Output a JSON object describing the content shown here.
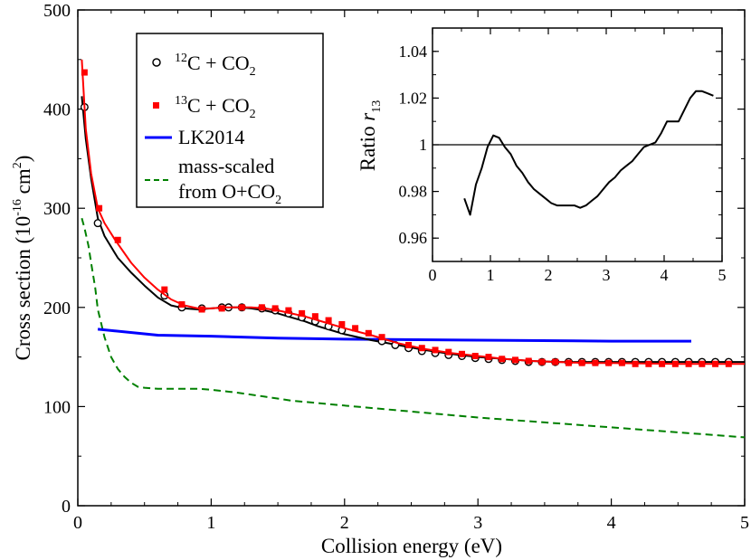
{
  "chart_data": [
    {
      "type": "line",
      "xlabel": "Collision energy (eV)",
      "ylabel": {
        "base": "Cross section (10",
        "exp": "-16",
        "unit": " cm",
        "unit_exp": "2",
        "close": ")"
      },
      "xlim": [
        0,
        5
      ],
      "ylim": [
        0,
        500
      ],
      "x_ticks": [
        0,
        1,
        2,
        3,
        4,
        5
      ],
      "y_ticks": [
        0,
        100,
        200,
        300,
        400,
        500
      ],
      "series": [
        {
          "name": "12C + CO2",
          "legend": {
            "sup": "12",
            "base": "C + CO",
            "sub": "2"
          },
          "color": "#000000",
          "marker": "open-circle",
          "line_x": [
            0.03,
            0.06,
            0.1,
            0.15,
            0.2,
            0.3,
            0.4,
            0.5,
            0.6,
            0.7,
            0.8,
            0.9,
            1.0,
            1.1,
            1.2,
            1.3,
            1.4,
            1.5,
            1.6,
            1.7,
            1.8,
            1.9,
            2.0,
            2.2,
            2.4,
            2.6,
            2.8,
            3.0,
            3.2,
            3.4,
            3.6,
            3.8,
            4.0,
            4.5,
            5.0
          ],
          "line_y": [
            413,
            370,
            330,
            290,
            272,
            250,
            235,
            222,
            210,
            202,
            199,
            198,
            199,
            200,
            200,
            199,
            197,
            194,
            190,
            186,
            181,
            177,
            173,
            167,
            162,
            157,
            153,
            150,
            148,
            146,
            145,
            145,
            145,
            145,
            145
          ],
          "x": [
            0.05,
            0.15,
            0.65,
            0.78,
            0.93,
            1.08,
            1.13,
            1.23,
            1.38,
            1.48,
            1.58,
            1.68,
            1.78,
            1.88,
            1.98,
            2.28,
            2.38,
            2.48,
            2.58,
            2.68,
            2.78,
            2.88,
            2.98,
            3.08,
            3.18,
            3.28,
            3.38,
            3.48,
            3.58,
            3.68,
            3.78,
            3.88,
            3.98,
            4.08,
            4.18,
            4.28,
            4.38,
            4.48,
            4.58,
            4.68,
            4.78,
            4.88
          ],
          "y": [
            402,
            285,
            212,
            200,
            199,
            200,
            200,
            200,
            199,
            197,
            194,
            190,
            186,
            181,
            177,
            166,
            162,
            159,
            156,
            154,
            152,
            151,
            149,
            148,
            147,
            146,
            145,
            145,
            145,
            145,
            145,
            145,
            145,
            145,
            145,
            145,
            145,
            145,
            145,
            145,
            145,
            145
          ]
        },
        {
          "name": "13C + CO2",
          "legend": {
            "sup": "13",
            "base": "C + CO",
            "sub": "2"
          },
          "color": "#ff0000",
          "marker": "filled-square",
          "line_x": [
            0.03,
            0.06,
            0.1,
            0.15,
            0.2,
            0.28,
            0.4,
            0.5,
            0.6,
            0.7,
            0.8,
            0.9,
            1.0,
            1.1,
            1.2,
            1.3,
            1.4,
            1.5,
            1.6,
            1.7,
            1.8,
            1.9,
            2.0,
            2.2,
            2.4,
            2.6,
            2.8,
            3.0,
            3.2,
            3.4,
            3.6,
            3.8,
            4.0,
            4.5,
            5.0
          ],
          "line_y": [
            450,
            380,
            335,
            300,
            285,
            268,
            245,
            230,
            218,
            208,
            202,
            199,
            199,
            200,
            200,
            200,
            199,
            197,
            194,
            191,
            187,
            183,
            179,
            172,
            164,
            158,
            154,
            151,
            148,
            146,
            145,
            144,
            144,
            143,
            143
          ],
          "x": [
            0.05,
            0.16,
            0.3,
            0.65,
            0.78,
            0.93,
            1.08,
            1.23,
            1.38,
            1.48,
            1.58,
            1.68,
            1.78,
            1.88,
            1.98,
            2.08,
            2.18,
            2.28,
            2.48,
            2.58,
            2.68,
            2.78,
            2.88,
            2.98,
            3.08,
            3.18,
            3.28,
            3.38,
            3.48,
            3.58,
            3.68,
            3.78,
            3.88,
            3.98,
            4.08,
            4.18,
            4.28,
            4.38,
            4.48,
            4.58,
            4.68,
            4.78,
            4.88
          ],
          "y": [
            437,
            300,
            268,
            218,
            203,
            198,
            199,
            200,
            200,
            199,
            197,
            194,
            191,
            187,
            183,
            179,
            174,
            170,
            162,
            159,
            157,
            155,
            153,
            151,
            150,
            148,
            147,
            146,
            145,
            145,
            144,
            144,
            144,
            144,
            144,
            143,
            143,
            143,
            143,
            143,
            143,
            143,
            143
          ]
        },
        {
          "name": "LK2014",
          "legend": {
            "sup": "",
            "base": "LK2014",
            "sub": ""
          },
          "color": "#0000ff",
          "marker": "none",
          "line_x": [
            0.15,
            0.6,
            1.0,
            1.5,
            2.0,
            3.0,
            4.0,
            4.6
          ],
          "line_y": [
            178,
            172,
            171,
            169,
            168,
            167,
            166,
            166
          ]
        },
        {
          "name": "mass-scaled from O+CO2",
          "legend": {
            "line1": "mass-scaled",
            "line2_base": "from O+CO",
            "line2_sub": "2"
          },
          "color": "#008000",
          "marker": "none",
          "dash": "dashed",
          "line_x": [
            0.03,
            0.05,
            0.08,
            0.1,
            0.13,
            0.15,
            0.2,
            0.25,
            0.3,
            0.35,
            0.4,
            0.45,
            0.5,
            0.6,
            0.7,
            0.8,
            0.9,
            1.0,
            1.2,
            1.4,
            1.6,
            2.0,
            2.5,
            3.0,
            3.5,
            4.0,
            4.5,
            5.0
          ],
          "line_y": [
            290,
            280,
            262,
            245,
            220,
            198,
            170,
            150,
            138,
            130,
            124,
            120,
            119,
            118,
            118,
            118,
            118,
            117,
            114,
            110,
            106,
            101,
            95,
            89,
            84,
            79,
            74,
            69
          ]
        }
      ],
      "legend_position": "top-left"
    },
    {
      "type": "line",
      "role": "inset",
      "ylabel": {
        "base": "Ratio ",
        "italic": "r",
        "sub": "13"
      },
      "xlim": [
        0,
        5
      ],
      "ylim": [
        0.95,
        1.05
      ],
      "x_ticks": [
        0,
        1,
        2,
        3,
        4,
        5
      ],
      "x_tick_labels": [
        "0",
        "1",
        "2",
        "3",
        "4",
        "5"
      ],
      "y_ticks": [
        0.96,
        0.98,
        1.0,
        1.02,
        1.04
      ],
      "y_tick_labels": [
        "0.96",
        "0.98",
        "1",
        "1.02",
        "1.04"
      ],
      "reference_line_y": 1.0,
      "series": [
        {
          "name": "ratio r13",
          "color": "#000000",
          "x": [
            0.55,
            0.65,
            0.75,
            0.85,
            0.95,
            1.05,
            1.15,
            1.25,
            1.35,
            1.45,
            1.55,
            1.65,
            1.75,
            1.85,
            1.95,
            2.05,
            2.15,
            2.25,
            2.35,
            2.45,
            2.55,
            2.65,
            2.75,
            2.85,
            2.95,
            3.05,
            3.15,
            3.25,
            3.35,
            3.45,
            3.55,
            3.65,
            3.75,
            3.85,
            3.95,
            4.05,
            4.15,
            4.25,
            4.35,
            4.45,
            4.55,
            4.65,
            4.75,
            4.85
          ],
          "y": [
            0.977,
            0.97,
            0.983,
            0.99,
            0.999,
            1.004,
            1.003,
            0.999,
            0.996,
            0.991,
            0.988,
            0.984,
            0.981,
            0.979,
            0.977,
            0.975,
            0.974,
            0.974,
            0.974,
            0.974,
            0.973,
            0.974,
            0.976,
            0.978,
            0.981,
            0.984,
            0.986,
            0.989,
            0.991,
            0.993,
            0.996,
            0.999,
            1.0,
            1.001,
            1.005,
            1.01,
            1.01,
            1.01,
            1.015,
            1.02,
            1.023,
            1.023,
            1.022,
            1.021
          ]
        }
      ]
    }
  ]
}
